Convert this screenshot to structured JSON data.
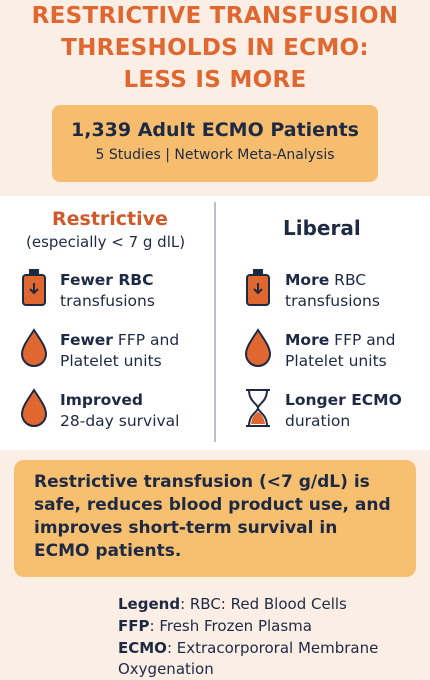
{
  "header": {
    "title_lines": [
      "RESTRICTIVE TRANSFUSION",
      "THRESHOLDS IN ECMO:",
      "LESS IS MORE"
    ]
  },
  "summary": {
    "headline": "1,339 Adult ECMO Patients",
    "detail": "5 Studies | Network Meta-Analysis"
  },
  "comparison": {
    "left": {
      "heading": "Restrictive",
      "subheading": "(especially < 7 g dlL)",
      "items": [
        {
          "bold": "Fewer RBC",
          "text": "transfusions"
        },
        {
          "bold": "Fewer",
          "text": "FFP and Platelet units"
        },
        {
          "bold": "Improved",
          "text": "28-day survival"
        }
      ]
    },
    "right": {
      "heading": "Liberal",
      "items": [
        {
          "bold": "More",
          "text": "RBC transfusions"
        },
        {
          "bold": "More",
          "text": "FFP and Platelet units"
        },
        {
          "bold": "Longer ECMO",
          "text": "duration"
        }
      ]
    }
  },
  "conclusion": "Restrictive transfusion (<7 g/dL) is safe, reduces blood product use, and improves short-term survival in ECMO patients.",
  "legend": [
    {
      "term": "Legend",
      "text": ": RBC: Red Blood Cells"
    },
    {
      "term": "FFP",
      "text": ": Fresh Frozen Plasma"
    },
    {
      "term": "ECMO",
      "text": ": Extracorpororal Membrane Oxygenation"
    }
  ]
}
